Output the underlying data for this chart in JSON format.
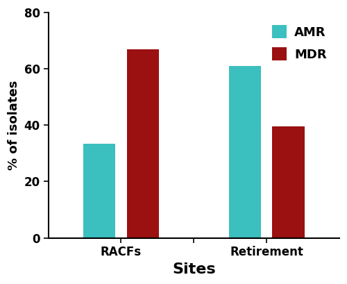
{
  "categories": [
    "RACFs",
    "Retirement"
  ],
  "amr_values": [
    33.3,
    61.0
  ],
  "mdr_values": [
    67.0,
    39.5
  ],
  "amr_color": "#3BBFBF",
  "mdr_color": "#9B1010",
  "ylabel": "% of isolates",
  "xlabel": "Sites",
  "legend_labels": [
    "AMR",
    "MDR"
  ],
  "ylim": [
    0,
    80
  ],
  "yticks": [
    0,
    20,
    40,
    60,
    80
  ],
  "bar_width": 0.22,
  "bar_gap": 0.08,
  "group_positions": [
    0.5,
    1.5
  ],
  "axis_fontsize": 13,
  "xlabel_fontsize": 16,
  "tick_fontsize": 12,
  "legend_fontsize": 13
}
